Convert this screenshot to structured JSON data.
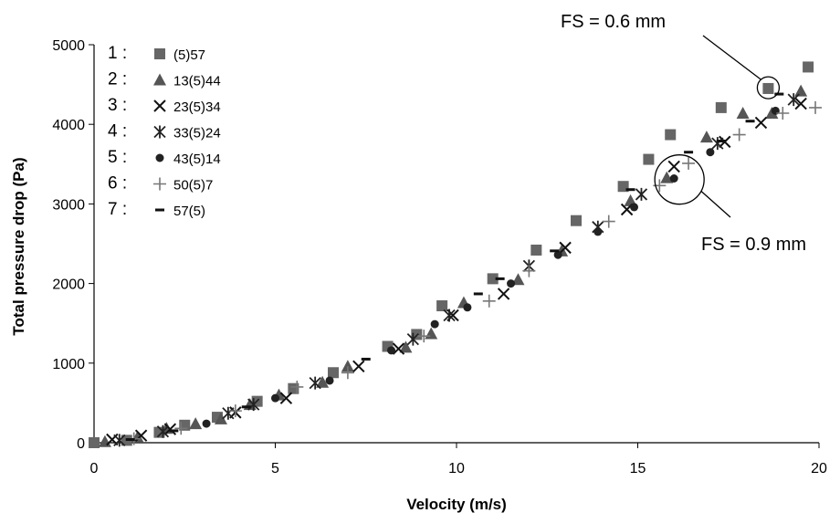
{
  "chart_data": {
    "type": "scatter",
    "xlabel": "Velocity (m/s)",
    "ylabel": "Total pressure drop (Pa)",
    "xlim": [
      0,
      20
    ],
    "ylim": [
      0,
      5000
    ],
    "xticks": [
      "0",
      "5",
      "10",
      "15",
      "20"
    ],
    "yticks": [
      "0",
      "1000",
      "2000",
      "3000",
      "4000",
      "5000"
    ],
    "grid": false,
    "legend_position": "top-left",
    "series": [
      {
        "number": "1 :",
        "name": "(5)57",
        "marker": "square",
        "color": "#666666",
        "points": [
          [
            0,
            0
          ],
          [
            0.9,
            30
          ],
          [
            1.8,
            130
          ],
          [
            2.5,
            220
          ],
          [
            3.4,
            320
          ],
          [
            4.5,
            520
          ],
          [
            5.5,
            680
          ],
          [
            6.6,
            880
          ],
          [
            8.1,
            1210
          ],
          [
            8.9,
            1360
          ],
          [
            9.6,
            1720
          ],
          [
            11.0,
            2060
          ],
          [
            12.2,
            2420
          ],
          [
            13.3,
            2790
          ],
          [
            14.6,
            3220
          ],
          [
            15.3,
            3560
          ],
          [
            15.9,
            3870
          ],
          [
            17.3,
            4210
          ],
          [
            18.6,
            4450
          ],
          [
            19.7,
            4720
          ]
        ]
      },
      {
        "number": "2 :",
        "name": "13(5)44",
        "marker": "triangle",
        "color": "#555555",
        "points": [
          [
            0.3,
            15
          ],
          [
            1.2,
            70
          ],
          [
            2.0,
            180
          ],
          [
            2.8,
            240
          ],
          [
            3.5,
            300
          ],
          [
            4.3,
            480
          ],
          [
            5.1,
            600
          ],
          [
            6.3,
            760
          ],
          [
            7.0,
            960
          ],
          [
            8.6,
            1200
          ],
          [
            9.3,
            1370
          ],
          [
            10.2,
            1760
          ],
          [
            11.7,
            2050
          ],
          [
            12.9,
            2410
          ],
          [
            14.8,
            3040
          ],
          [
            15.8,
            3330
          ],
          [
            16.9,
            3840
          ],
          [
            17.9,
            4140
          ],
          [
            18.7,
            4140
          ],
          [
            19.5,
            4420
          ]
        ]
      },
      {
        "number": "3 :",
        "name": "23(5)34",
        "marker": "x",
        "color": "#111111",
        "points": [
          [
            0.5,
            40
          ],
          [
            1.3,
            90
          ],
          [
            2.1,
            170
          ],
          [
            3.9,
            380
          ],
          [
            5.3,
            560
          ],
          [
            7.3,
            960
          ],
          [
            8.4,
            1180
          ],
          [
            9.9,
            1600
          ],
          [
            11.3,
            1870
          ],
          [
            13.0,
            2450
          ],
          [
            14.7,
            2930
          ],
          [
            16.0,
            3470
          ],
          [
            17.4,
            3780
          ],
          [
            18.4,
            4020
          ],
          [
            19.5,
            4260
          ]
        ]
      },
      {
        "number": "4 :",
        "name": "33(5)24",
        "marker": "asterisk",
        "color": "#222222",
        "points": [
          [
            0.7,
            30
          ],
          [
            1.9,
            140
          ],
          [
            3.7,
            370
          ],
          [
            4.4,
            480
          ],
          [
            6.1,
            750
          ],
          [
            8.8,
            1300
          ],
          [
            9.8,
            1600
          ],
          [
            12.0,
            2220
          ],
          [
            13.9,
            2710
          ],
          [
            15.1,
            3120
          ],
          [
            17.2,
            3760
          ],
          [
            19.3,
            4310
          ]
        ]
      },
      {
        "number": "5 :",
        "name": "43(5)14",
        "marker": "circle",
        "color": "#222222",
        "points": [
          [
            3.1,
            240
          ],
          [
            5.0,
            560
          ],
          [
            6.5,
            780
          ],
          [
            8.2,
            1160
          ],
          [
            9.4,
            1490
          ],
          [
            10.3,
            1700
          ],
          [
            11.5,
            2000
          ],
          [
            12.8,
            2360
          ],
          [
            13.9,
            2650
          ],
          [
            14.9,
            2960
          ],
          [
            16.0,
            3320
          ],
          [
            17.0,
            3650
          ],
          [
            18.8,
            4170
          ]
        ]
      },
      {
        "number": "6 :",
        "name": "50(5)7",
        "marker": "plus",
        "color": "#777777",
        "points": [
          [
            1.1,
            50
          ],
          [
            2.4,
            180
          ],
          [
            3.9,
            400
          ],
          [
            5.6,
            700
          ],
          [
            7.0,
            880
          ],
          [
            9.1,
            1340
          ],
          [
            10.9,
            1780
          ],
          [
            12.0,
            2160
          ],
          [
            14.2,
            2780
          ],
          [
            15.6,
            3230
          ],
          [
            16.4,
            3510
          ],
          [
            17.8,
            3870
          ],
          [
            19.0,
            4140
          ],
          [
            19.9,
            4210
          ]
        ]
      },
      {
        "number": "7 :",
        "name": "57(5)",
        "marker": "dash",
        "color": "#111111",
        "points": [
          [
            1.0,
            40
          ],
          [
            2.2,
            150
          ],
          [
            4.2,
            450
          ],
          [
            7.5,
            1050
          ],
          [
            10.6,
            1870
          ],
          [
            11.2,
            2060
          ],
          [
            12.7,
            2410
          ],
          [
            14.8,
            3180
          ],
          [
            16.4,
            3650
          ],
          [
            17.3,
            3790
          ],
          [
            18.1,
            4040
          ],
          [
            18.9,
            4380
          ]
        ]
      }
    ],
    "annotations": [
      {
        "text": "FS = 0.6 mm",
        "target": [
          18.6,
          4460
        ]
      },
      {
        "text": "FS = 0.9 mm",
        "target": [
          16.1,
          3490
        ]
      }
    ]
  }
}
